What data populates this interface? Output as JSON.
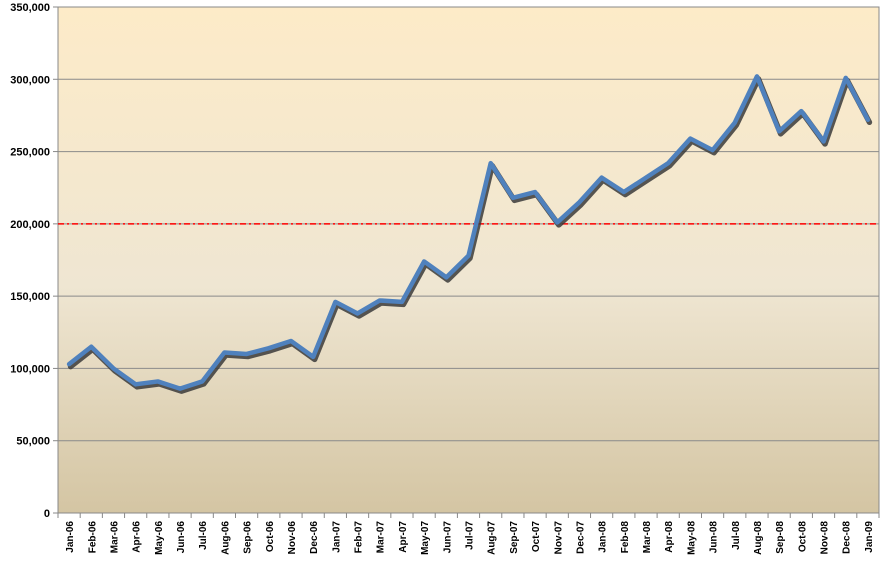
{
  "chart_data": {
    "type": "line",
    "title": "",
    "xlabel": "",
    "ylabel": "",
    "ylim": [
      0,
      350000
    ],
    "y_ticks": [
      0,
      50000,
      100000,
      150000,
      200000,
      250000,
      300000,
      350000
    ],
    "y_tick_labels": [
      "0",
      "50,000",
      "100,000",
      "150,000",
      "200,000",
      "250,000",
      "300,000",
      "350,000"
    ],
    "grid": "horizontal",
    "legend": "none",
    "categories": [
      "Jan-06",
      "Feb-06",
      "Mar-06",
      "Apr-06",
      "May-06",
      "Jun-06",
      "Jul-06",
      "Aug-06",
      "Sep-06",
      "Oct-06",
      "Nov-06",
      "Dec-06",
      "Jan-07",
      "Feb-07",
      "Mar-07",
      "Apr-07",
      "May-07",
      "Jun-07",
      "Jul-07",
      "Aug-07",
      "Sep-07",
      "Oct-07",
      "Nov-07",
      "Dec-07",
      "Jan-08",
      "Feb-08",
      "Mar-08",
      "Apr-08",
      "May-08",
      "Jun-08",
      "Jul-08",
      "Aug-08",
      "Sep-08",
      "Oct-08",
      "Nov-08",
      "Dec-08",
      "Jan-09"
    ],
    "series": [
      {
        "values": [
          103000,
          115000,
          100000,
          89000,
          91000,
          86000,
          91000,
          111000,
          110000,
          114000,
          119000,
          108000,
          146000,
          138000,
          147000,
          146000,
          174000,
          163000,
          178000,
          242000,
          218000,
          222000,
          201000,
          215000,
          232000,
          222000,
          232000,
          242000,
          259000,
          251000,
          270000,
          302000,
          264000,
          278000,
          257000,
          301000,
          272000
        ],
        "color": "#4f81bd"
      }
    ],
    "reference_line": {
      "value": 200000,
      "color": "#ff0000",
      "style": "dash-dot"
    },
    "background_gradient": [
      "#fdebc8",
      "#d4c5a3"
    ]
  }
}
